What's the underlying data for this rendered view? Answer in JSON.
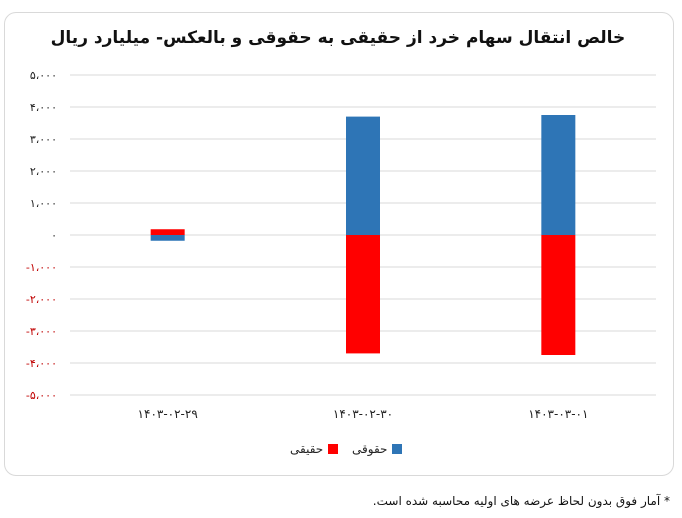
{
  "chart_data": {
    "type": "bar",
    "stacked": true,
    "title": "خالص انتقال سهام خرد از حقیقی به حقوقی و بالعکس- میلیارد ریال",
    "categories": [
      "۱۴۰۳-۰۲-۲۹",
      "۱۴۰۳-۰۲-۳۰",
      "۱۴۰۳-۰۳-۰۱"
    ],
    "series": [
      {
        "name": "حقیقی",
        "color": "#ff0000",
        "values": [
          180,
          -3700,
          -3750
        ]
      },
      {
        "name": "حقوقی",
        "color": "#2e75b6",
        "values": [
          -180,
          3700,
          3750
        ]
      }
    ],
    "ylim": [
      -5000,
      5000
    ],
    "yticks": [
      5000,
      4000,
      3000,
      2000,
      1000,
      0,
      -1000,
      -2000,
      -3000,
      -4000,
      -5000
    ],
    "ytick_labels": [
      "۵،۰۰۰",
      "۴،۰۰۰",
      "۳،۰۰۰",
      "۲،۰۰۰",
      "۱،۰۰۰",
      "۰",
      "-۱،۰۰۰",
      "-۲،۰۰۰",
      "-۳،۰۰۰",
      "-۴،۰۰۰",
      "-۵،۰۰۰"
    ],
    "negative_tick_color": "#c00000",
    "grid": true,
    "legend_position": "bottom"
  },
  "footnote": "* آمار فوق بدون لحاظ عرضه های اولیه محاسبه شده است."
}
